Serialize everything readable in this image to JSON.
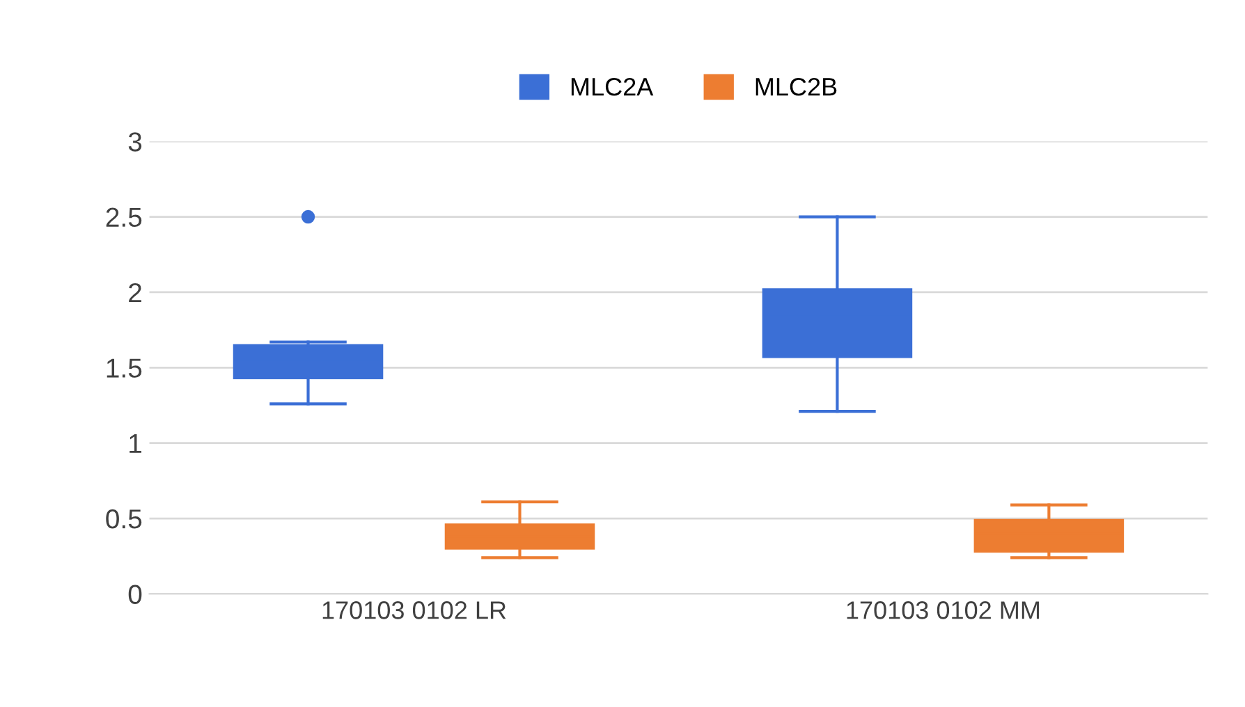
{
  "chart_data": {
    "type": "box",
    "categories": [
      "170103 0102 LR",
      "170103 0102 MM"
    ],
    "series": [
      {
        "name": "MLC2A",
        "color": "#3b6fd6",
        "boxes": [
          {
            "low": 1.26,
            "q1": 1.43,
            "median": 1.55,
            "q3": 1.65,
            "high": 1.67,
            "outliers": [
              2.5
            ]
          },
          {
            "low": 1.21,
            "q1": 1.57,
            "median": 1.85,
            "q3": 2.02,
            "high": 2.5
          }
        ]
      },
      {
        "name": "MLC2B",
        "color": "#ed7d31",
        "boxes": [
          {
            "low": 0.24,
            "q1": 0.3,
            "median": 0.38,
            "q3": 0.46,
            "high": 0.61
          },
          {
            "low": 0.24,
            "q1": 0.28,
            "median": 0.4,
            "q3": 0.49,
            "high": 0.59
          }
        ]
      }
    ],
    "ylim": [
      0,
      3
    ],
    "yticks": [
      0,
      0.5,
      1,
      1.5,
      2,
      2.5,
      3
    ],
    "grid": "y",
    "legend": "top"
  }
}
